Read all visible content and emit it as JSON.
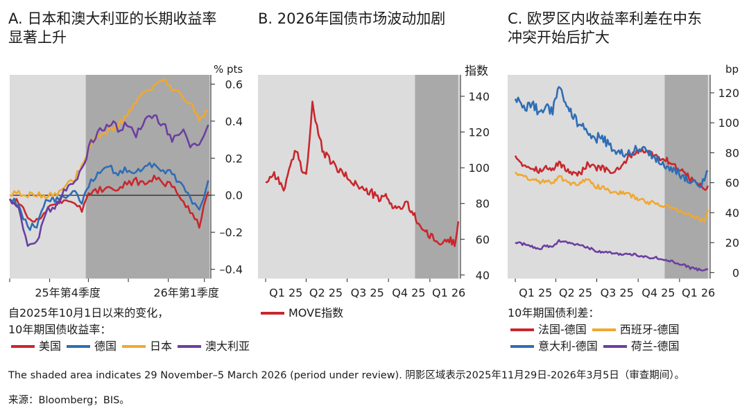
{
  "panels": {
    "a": {
      "title_line1": "A. 日本和澳大利亚的长期收益率",
      "title_line2": "显著上升",
      "unit": "% pts",
      "yticks": [
        "0.6",
        "0.4",
        "0.2",
        "0.0",
        "–0.2",
        "–0.4"
      ],
      "xticks": [
        "25年第4季度",
        "26年第1季度"
      ],
      "legend_line1": "自2025年10月1日以来的变化，",
      "legend_line2": "10年期国债收益率：",
      "series_names": [
        "美国",
        "德国",
        "日本",
        "澳大利亚"
      ]
    },
    "b": {
      "title": "B. 2026年国债市场波动加剧",
      "unit": "指数",
      "yticks": [
        "140",
        "120",
        "100",
        "80",
        "60",
        "40"
      ],
      "xticks": [
        "Q1 25",
        "Q2 25",
        "Q3 25",
        "Q4 25",
        "Q1 26"
      ],
      "series_names": [
        "MOVE指数"
      ]
    },
    "c": {
      "title_line1": "C. 欧罗区内收益率利差在中东",
      "title_line2": "冲突开始后扩大",
      "unit": "bp",
      "yticks": [
        "120",
        "100",
        "80",
        "60",
        "40",
        "20",
        "0"
      ],
      "xticks": [
        "Q1 25",
        "Q2 25",
        "Q3 25",
        "Q4 25",
        "Q1 26"
      ],
      "legend_title": "10年期国债利差：",
      "series_names": [
        "法国-德国",
        "西班牙-德国",
        "意大利-德国",
        "荷兰-德国"
      ]
    }
  },
  "footnote": "The shaded area indicates 29 November–5 March 2026 (period under review).   阴影区域表示2025年11月29日-2026年3月5日（审查期间）。",
  "source": "来源：Bloomberg；BIS。",
  "colors": {
    "plot_bg": "#dcdcdc",
    "shade": "#a9a9a9",
    "us": "#c8272d",
    "germany": "#2e6db4",
    "japan": "#f0a830",
    "australia": "#6b3fa0",
    "move": "#c8272d",
    "france": "#c8272d",
    "spain": "#f0a830",
    "italy": "#2e6db4",
    "netherlands": "#6b3fa0"
  },
  "chart_data": [
    {
      "type": "line",
      "title": "A. 日本和澳大利亚的长期收益率显著上升",
      "ylabel": "% pts",
      "ylim": [
        -0.45,
        0.65
      ],
      "xlim": [
        "2025-10-01",
        "2026-03-06"
      ],
      "shaded_period": [
        "2025-11-29",
        "2026-03-05"
      ],
      "x": [
        "2025-10-01",
        "2025-10-08",
        "2025-10-15",
        "2025-10-22",
        "2025-10-29",
        "2025-11-05",
        "2025-11-12",
        "2025-11-19",
        "2025-11-26",
        "2025-12-03",
        "2025-12-10",
        "2025-12-17",
        "2025-12-24",
        "2025-12-31",
        "2026-01-07",
        "2026-01-14",
        "2026-01-21",
        "2026-01-28",
        "2026-02-04",
        "2026-02-11",
        "2026-02-18",
        "2026-02-25",
        "2026-03-04"
      ],
      "series": [
        {
          "name": "美国",
          "values": [
            -0.02,
            -0.04,
            -0.12,
            -0.14,
            -0.08,
            -0.05,
            -0.02,
            -0.05,
            -0.08,
            0.02,
            0.03,
            0.05,
            0.04,
            0.06,
            0.08,
            0.05,
            0.1,
            0.07,
            0.05,
            -0.02,
            -0.08,
            -0.16,
            0.02
          ]
        },
        {
          "name": "德国",
          "values": [
            -0.02,
            -0.05,
            -0.18,
            -0.16,
            -0.03,
            -0.02,
            -0.01,
            0.02,
            -0.03,
            0.08,
            0.12,
            0.15,
            0.12,
            0.14,
            0.12,
            0.15,
            0.17,
            0.14,
            0.12,
            0.05,
            -0.02,
            -0.08,
            0.08
          ]
        },
        {
          "name": "日本",
          "values": [
            0.0,
            0.02,
            0.0,
            0.0,
            0.0,
            0.01,
            0.03,
            0.08,
            0.15,
            0.28,
            0.33,
            0.35,
            0.38,
            0.42,
            0.5,
            0.55,
            0.6,
            0.62,
            0.57,
            0.54,
            0.5,
            0.42,
            0.45
          ]
        },
        {
          "name": "澳大利亚",
          "values": [
            -0.02,
            -0.08,
            -0.28,
            -0.25,
            -0.1,
            -0.05,
            0.01,
            0.08,
            0.14,
            0.28,
            0.36,
            0.39,
            0.36,
            0.38,
            0.33,
            0.4,
            0.45,
            0.38,
            0.3,
            0.36,
            0.28,
            0.27,
            0.38
          ]
        }
      ]
    },
    {
      "type": "line",
      "title": "B. 2026年国债市场波动加剧",
      "ylabel": "指数",
      "ylim": [
        38,
        152
      ],
      "xlim": [
        "2024-12-15",
        "2026-03-10"
      ],
      "shaded_period": [
        "2025-11-29",
        "2026-03-05"
      ],
      "x": [
        "2025-01-01",
        "2025-01-20",
        "2025-02-10",
        "2025-02-25",
        "2025-03-10",
        "2025-03-25",
        "2025-04-01",
        "2025-04-08",
        "2025-04-15",
        "2025-04-25",
        "2025-05-10",
        "2025-05-25",
        "2025-06-10",
        "2025-06-25",
        "2025-07-10",
        "2025-07-25",
        "2025-08-10",
        "2025-08-25",
        "2025-09-10",
        "2025-09-25",
        "2025-10-10",
        "2025-10-25",
        "2025-11-10",
        "2025-11-25",
        "2025-12-10",
        "2025-12-25",
        "2026-01-10",
        "2026-01-25",
        "2026-02-10",
        "2026-02-25",
        "2026-03-05"
      ],
      "series": [
        {
          "name": "MOVE指数",
          "values": [
            92,
            97,
            88,
            100,
            110,
            98,
            96,
            114,
            136,
            122,
            108,
            104,
            99,
            96,
            93,
            90,
            87,
            86,
            82,
            84,
            79,
            77,
            80,
            74,
            68,
            63,
            60,
            57,
            60,
            58,
            70
          ]
        }
      ]
    },
    {
      "type": "line",
      "title": "C. 欧罗区内收益率利差在中东冲突开始后扩大",
      "ylabel": "bp",
      "ylim": [
        -4,
        132
      ],
      "xlim": [
        "2024-12-15",
        "2026-03-10"
      ],
      "shaded_period": [
        "2025-11-29",
        "2026-03-05"
      ],
      "x": [
        "2025-01-01",
        "2025-01-20",
        "2025-02-10",
        "2025-02-25",
        "2025-03-10",
        "2025-03-25",
        "2025-04-08",
        "2025-04-25",
        "2025-05-10",
        "2025-05-25",
        "2025-06-10",
        "2025-06-25",
        "2025-07-10",
        "2025-07-25",
        "2025-08-10",
        "2025-08-25",
        "2025-09-10",
        "2025-09-25",
        "2025-10-10",
        "2025-10-25",
        "2025-11-10",
        "2025-11-25",
        "2025-12-10",
        "2025-12-25",
        "2026-01-10",
        "2026-01-25",
        "2026-02-10",
        "2026-02-25",
        "2026-03-05"
      ],
      "series": [
        {
          "name": "法国-德国",
          "values": [
            78,
            72,
            70,
            68,
            70,
            68,
            74,
            68,
            67,
            66,
            72,
            70,
            70,
            68,
            67,
            70,
            78,
            80,
            82,
            80,
            78,
            76,
            74,
            70,
            68,
            62,
            60,
            55,
            58
          ]
        },
        {
          "name": "西班牙-德国",
          "values": [
            67,
            64,
            62,
            60,
            62,
            60,
            65,
            60,
            59,
            60,
            62,
            58,
            57,
            55,
            54,
            53,
            52,
            50,
            48,
            47,
            46,
            45,
            44,
            42,
            40,
            38,
            36,
            35,
            42
          ]
        },
        {
          "name": "意大利-德国",
          "values": [
            116,
            110,
            112,
            106,
            110,
            108,
            126,
            112,
            104,
            98,
            96,
            88,
            92,
            86,
            82,
            80,
            80,
            82,
            85,
            80,
            76,
            73,
            70,
            68,
            64,
            60,
            58,
            60,
            68
          ]
        },
        {
          "name": "荷兰-德国",
          "values": [
            20,
            19,
            17,
            16,
            18,
            17,
            21,
            20,
            19,
            18,
            17,
            15,
            14,
            14,
            13,
            12,
            12,
            12,
            11,
            10,
            10,
            9,
            8,
            6,
            5,
            3,
            2,
            2,
            2
          ]
        }
      ]
    }
  ]
}
